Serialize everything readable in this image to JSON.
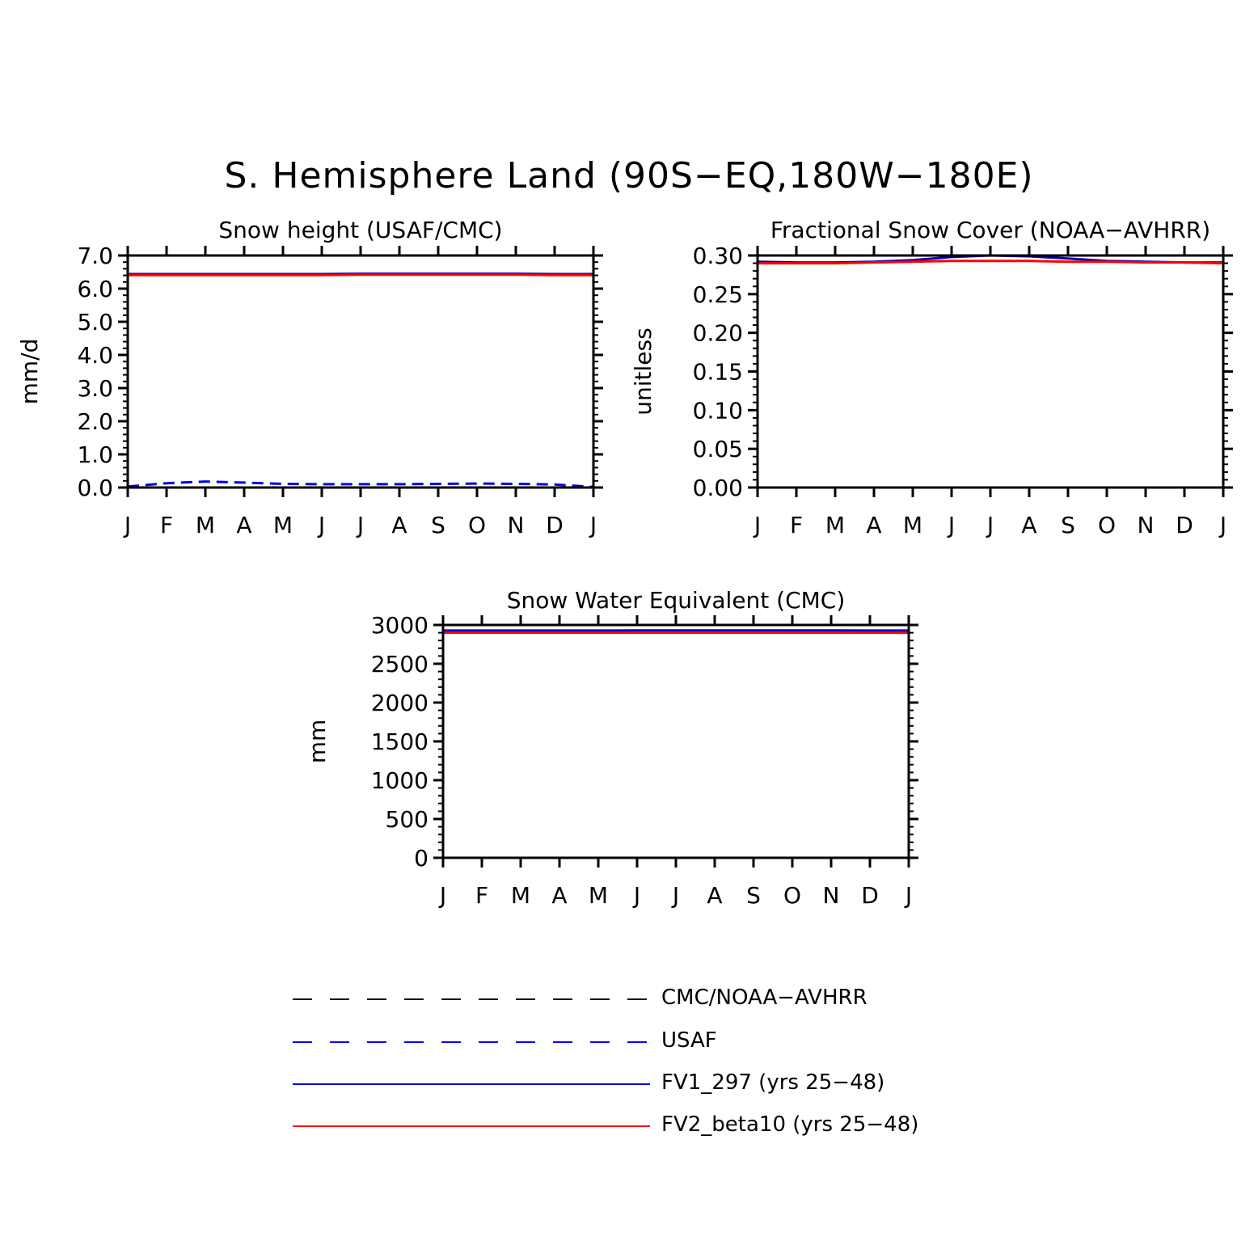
{
  "page": {
    "title": "S. Hemisphere Land (90S−EQ,180W−180E)"
  },
  "chart_data": [
    {
      "id": "snow-height",
      "type": "line",
      "title": "Snow height (USAF/CMC)",
      "ylabel": "mm/d",
      "xlabel": "",
      "x_tick_labels": [
        "J",
        "F",
        "M",
        "A",
        "M",
        "J",
        "J",
        "A",
        "S",
        "O",
        "N",
        "D",
        "J"
      ],
      "ylim": [
        0,
        7
      ],
      "yticks": [
        0,
        1,
        2,
        3,
        4,
        5,
        6,
        7
      ],
      "ytick_labels": [
        "0.0",
        "1.0",
        "2.0",
        "3.0",
        "4.0",
        "5.0",
        "6.0",
        "7.0"
      ],
      "ytick_minor": 0.2,
      "series": [
        {
          "name": "CMC/NOAA-AVHRR",
          "color": "#000000",
          "style": "dashed",
          "x": [
            0,
            1,
            2,
            3,
            4,
            5,
            6,
            7,
            8,
            9,
            10,
            11,
            12
          ],
          "values": [
            0.0,
            0.0,
            0.0,
            0.0,
            0.0,
            0.0,
            0.0,
            0.0,
            0.0,
            0.0,
            0.0,
            0.0,
            0.0
          ]
        },
        {
          "name": "USAF",
          "color": "#0000ee",
          "style": "dashed",
          "x": [
            0,
            1,
            2,
            3,
            4,
            5,
            6,
            7,
            8,
            9,
            10,
            11,
            12
          ],
          "values": [
            0.03,
            0.13,
            0.18,
            0.15,
            0.11,
            0.1,
            0.1,
            0.1,
            0.11,
            0.12,
            0.11,
            0.09,
            0.02
          ]
        },
        {
          "name": "FV1_297 (yrs 25-48)",
          "color": "#0000cc",
          "style": "solid",
          "x": [
            0,
            1,
            2,
            3,
            4,
            5,
            6,
            7,
            8,
            9,
            10,
            11,
            12
          ],
          "values": [
            6.44,
            6.44,
            6.44,
            6.44,
            6.44,
            6.44,
            6.45,
            6.45,
            6.45,
            6.45,
            6.45,
            6.44,
            6.44
          ]
        },
        {
          "name": "FV2_beta10 (yrs 25-48)",
          "color": "#ff0000",
          "style": "solid",
          "x": [
            0,
            1,
            2,
            3,
            4,
            5,
            6,
            7,
            8,
            9,
            10,
            11,
            12
          ],
          "values": [
            6.41,
            6.41,
            6.41,
            6.41,
            6.41,
            6.41,
            6.42,
            6.42,
            6.42,
            6.42,
            6.42,
            6.41,
            6.41
          ]
        }
      ]
    },
    {
      "id": "fractional-snow-cover",
      "type": "line",
      "title": "Fractional Snow Cover (NOAA−AVHRR)",
      "ylabel": "unitless",
      "xlabel": "",
      "x_tick_labels": [
        "J",
        "F",
        "M",
        "A",
        "M",
        "J",
        "J",
        "A",
        "S",
        "O",
        "N",
        "D",
        "J"
      ],
      "ylim": [
        0,
        0.3
      ],
      "yticks": [
        0,
        0.05,
        0.1,
        0.15,
        0.2,
        0.25,
        0.3
      ],
      "ytick_labels": [
        "0.00",
        "0.05",
        "0.10",
        "0.15",
        "0.20",
        "0.25",
        "0.30"
      ],
      "ytick_minor": 0.01,
      "series": [
        {
          "name": "CMC/NOAA-AVHRR",
          "color": "#000000",
          "style": "dashed",
          "x": [
            0,
            1,
            2,
            3,
            4,
            5,
            6,
            7,
            8,
            9,
            10,
            11,
            12
          ],
          "values": [
            0.0,
            0.0,
            0.0,
            0.0,
            0.0,
            0.0,
            0.0,
            0.0,
            0.0,
            0.0,
            0.0,
            0.0,
            0.0
          ]
        },
        {
          "name": "FV1_297 (yrs 25-48)",
          "color": "#0000cc",
          "style": "solid",
          "x": [
            0,
            1,
            2,
            3,
            4,
            5,
            6,
            7,
            8,
            9,
            10,
            11,
            12
          ],
          "values": [
            0.292,
            0.291,
            0.291,
            0.292,
            0.294,
            0.298,
            0.3,
            0.299,
            0.296,
            0.293,
            0.292,
            0.291,
            0.291
          ]
        },
        {
          "name": "FV2_beta10 (yrs 25-48)",
          "color": "#ff0000",
          "style": "solid",
          "x": [
            0,
            1,
            2,
            3,
            4,
            5,
            6,
            7,
            8,
            9,
            10,
            11,
            12
          ],
          "values": [
            0.29,
            0.29,
            0.29,
            0.291,
            0.292,
            0.293,
            0.293,
            0.293,
            0.292,
            0.292,
            0.291,
            0.291,
            0.29
          ]
        }
      ]
    },
    {
      "id": "snow-water-equivalent",
      "type": "line",
      "title": "Snow Water Equivalent (CMC)",
      "ylabel": "mm",
      "xlabel": "",
      "x_tick_labels": [
        "J",
        "F",
        "M",
        "A",
        "M",
        "J",
        "J",
        "A",
        "S",
        "O",
        "N",
        "D",
        "J"
      ],
      "ylim": [
        0,
        3000
      ],
      "yticks": [
        0,
        500,
        1000,
        1500,
        2000,
        2500,
        3000
      ],
      "ytick_labels": [
        "0",
        "500",
        "1000",
        "1500",
        "2000",
        "2500",
        "3000"
      ],
      "ytick_minor": 100,
      "series": [
        {
          "name": "CMC/NOAA-AVHRR",
          "color": "#000000",
          "style": "dashed",
          "x": [
            0,
            1,
            2,
            3,
            4,
            5,
            6,
            7,
            8,
            9,
            10,
            11,
            12
          ],
          "values": [
            0,
            0,
            0,
            0,
            0,
            0,
            0,
            0,
            0,
            0,
            0,
            0,
            0
          ]
        },
        {
          "name": "FV1_297 (yrs 25-48)",
          "color": "#0000cc",
          "style": "solid",
          "x": [
            0,
            1,
            2,
            3,
            4,
            5,
            6,
            7,
            8,
            9,
            10,
            11,
            12
          ],
          "values": [
            2928,
            2928,
            2928,
            2928,
            2928,
            2929,
            2929,
            2929,
            2929,
            2929,
            2929,
            2928,
            2928
          ]
        },
        {
          "name": "FV2_beta10 (yrs 25-48)",
          "color": "#ff0000",
          "style": "solid",
          "x": [
            0,
            1,
            2,
            3,
            4,
            5,
            6,
            7,
            8,
            9,
            10,
            11,
            12
          ],
          "values": [
            2900,
            2900,
            2900,
            2900,
            2900,
            2900,
            2900,
            2900,
            2900,
            2900,
            2900,
            2900,
            2900
          ]
        }
      ]
    }
  ],
  "legend": {
    "placement": "bottom-center",
    "entries": [
      {
        "label": "CMC/NOAA−AVHRR",
        "color": "#000000",
        "style": "dashed"
      },
      {
        "label": "USAF",
        "color": "#0000ee",
        "style": "dashed"
      },
      {
        "label": "FV1_297 (yrs 25−48)",
        "color": "#0000cc",
        "style": "solid"
      },
      {
        "label": "FV2_beta10 (yrs 25−48)",
        "color": "#ff0000",
        "style": "solid"
      }
    ]
  }
}
